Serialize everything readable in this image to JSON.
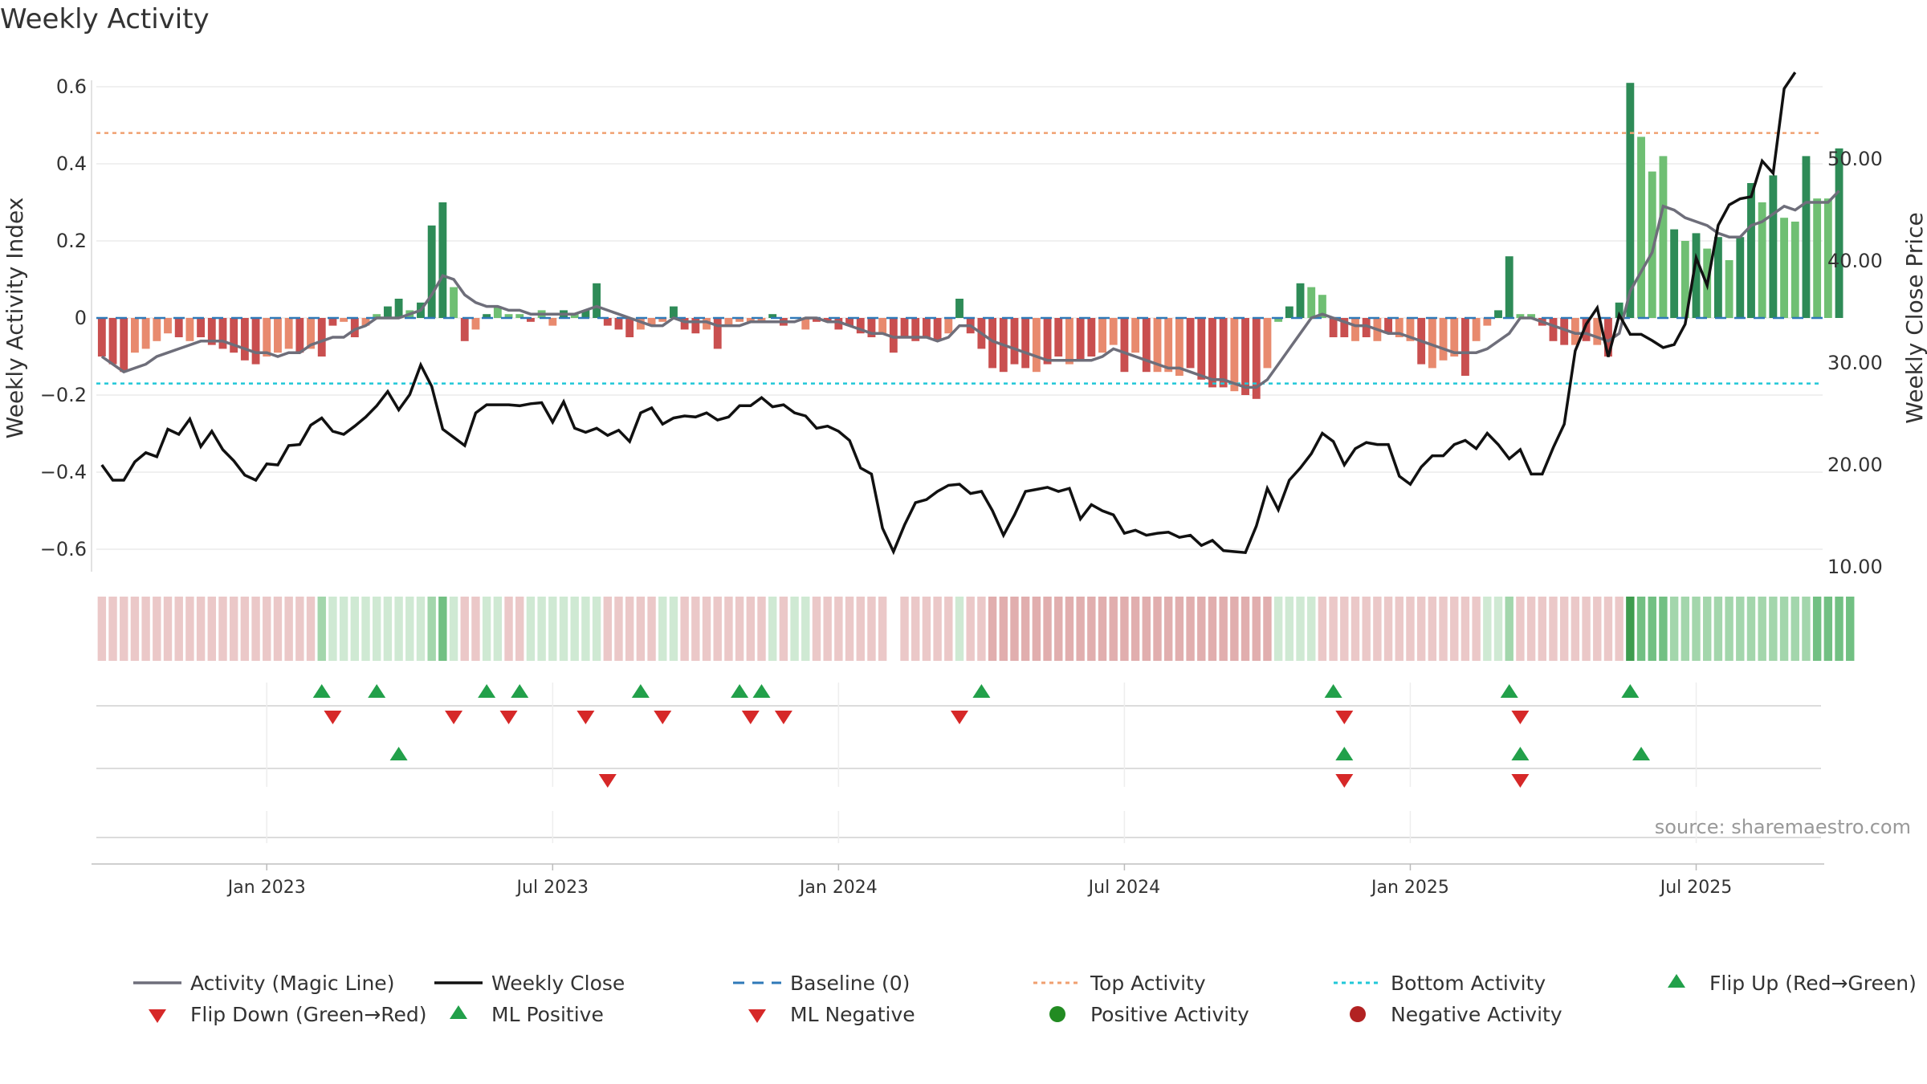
{
  "chart_data": {
    "type": "bar",
    "title": "Weekly Activity",
    "source": "source: sharemaestro.com",
    "y_left": {
      "label": "Weekly Activity Index",
      "ylim": [
        -0.66,
        0.6
      ],
      "ticks": [
        0.6,
        0.4,
        0.2,
        0,
        -0.2,
        -0.4,
        -0.6
      ],
      "tick_labels": [
        "0.6",
        "0.4",
        "0.2",
        "0",
        "−0.2",
        "−0.4",
        "−0.6"
      ]
    },
    "y_right": {
      "label": "Weekly Close Price",
      "ylim": [
        10,
        59
      ],
      "ticks": [
        50,
        40,
        30,
        20,
        10
      ],
      "tick_labels": [
        "50.00",
        "40.00",
        "30.00",
        "20.00",
        "10.00"
      ]
    },
    "x_ticks": [
      {
        "week": 15,
        "label": "Jan 2023"
      },
      {
        "week": 41,
        "label": "Jul 2023"
      },
      {
        "week": 67,
        "label": "Jan 2024"
      },
      {
        "week": 93,
        "label": "Jul 2024"
      },
      {
        "week": 119,
        "label": "Jan 2025"
      },
      {
        "week": 145,
        "label": "Jul 2025"
      }
    ],
    "weeks": 157,
    "reference_lines": {
      "baseline": 0,
      "top_activity": 0.48,
      "bottom_activity": -0.17
    },
    "activity_bars": [
      -0.1,
      -0.12,
      -0.14,
      -0.09,
      -0.08,
      -0.06,
      -0.04,
      -0.05,
      -0.06,
      -0.05,
      -0.07,
      -0.08,
      -0.09,
      -0.11,
      -0.12,
      -0.1,
      -0.09,
      -0.08,
      -0.09,
      -0.08,
      -0.1,
      -0.02,
      -0.01,
      -0.05,
      -0.02,
      0.01,
      0.03,
      0.05,
      0.02,
      0.04,
      0.24,
      0.3,
      0.08,
      -0.06,
      -0.03,
      0.01,
      0.03,
      0.01,
      0.01,
      -0.01,
      0.02,
      -0.02,
      0.02,
      0.01,
      0.02,
      0.09,
      -0.02,
      -0.03,
      -0.05,
      -0.03,
      -0.02,
      -0.01,
      0.03,
      -0.03,
      -0.04,
      -0.03,
      -0.08,
      -0.02,
      -0.01,
      -0.01,
      -0.01,
      0.01,
      -0.02,
      0,
      -0.03,
      -0.01,
      -0.01,
      -0.03,
      -0.02,
      -0.04,
      -0.05,
      -0.04,
      -0.09,
      -0.05,
      -0.06,
      -0.05,
      -0.06,
      -0.04,
      0.05,
      -0.04,
      -0.08,
      -0.13,
      -0.14,
      -0.12,
      -0.13,
      -0.14,
      -0.12,
      -0.1,
      -0.12,
      -0.11,
      -0.1,
      -0.09,
      -0.07,
      -0.14,
      -0.09,
      -0.14,
      -0.14,
      -0.14,
      -0.15,
      -0.13,
      -0.16,
      -0.18,
      -0.18,
      -0.19,
      -0.2,
      -0.21,
      -0.13,
      -0.01,
      0.03,
      0.09,
      0.08,
      0.06,
      -0.05,
      -0.05,
      -0.06,
      -0.05,
      -0.06,
      -0.04,
      -0.05,
      -0.06,
      -0.12,
      -0.13,
      -0.11,
      -0.1,
      -0.15,
      -0.06,
      -0.02,
      0.02,
      0.16,
      0.01,
      0.01,
      -0.02,
      -0.06,
      -0.07,
      -0.07,
      -0.06,
      -0.07,
      -0.1,
      0.04,
      0.61,
      0.47,
      0.38,
      0.42,
      0.23,
      0.2,
      0.22,
      0.18,
      0.21,
      0.15,
      0.21,
      0.35,
      0.3,
      0.37,
      0.26,
      0.25,
      0.42,
      0.31,
      0.31,
      0.44
    ],
    "bar_colors": [
      "#c94f4f",
      "#c94f4f",
      "#c94f4f",
      "#e88a6e",
      "#e88a6e",
      "#e88a6e",
      "#e88a6e",
      "#c94f4f",
      "#e88a6e",
      "#c94f4f",
      "#c94f4f",
      "#c94f4f",
      "#c94f4f",
      "#c94f4f",
      "#c94f4f",
      "#e88a6e",
      "#e88a6e",
      "#e88a6e",
      "#c94f4f",
      "#e88a6e",
      "#c94f4f",
      "#c94f4f",
      "#e88a6e",
      "#c94f4f",
      "#e88a6e",
      "#6fbf73",
      "#2e8b57",
      "#2e8b57",
      "#6fbf73",
      "#2e8b57",
      "#2e8b57",
      "#2e8b57",
      "#6fbf73",
      "#c94f4f",
      "#e88a6e",
      "#2e8b57",
      "#6fbf73",
      "#6fbf73",
      "#6fbf73",
      "#c94f4f",
      "#6fbf73",
      "#e88a6e",
      "#2e8b57",
      "#6fbf73",
      "#2e8b57",
      "#2e8b57",
      "#c94f4f",
      "#c94f4f",
      "#c94f4f",
      "#e88a6e",
      "#e88a6e",
      "#e88a6e",
      "#2e8b57",
      "#c94f4f",
      "#c94f4f",
      "#e88a6e",
      "#c94f4f",
      "#e88a6e",
      "#e88a6e",
      "#e88a6e",
      "#e88a6e",
      "#2e8b57",
      "#c94f4f",
      "#6fbf73",
      "#e88a6e",
      "#c94f4f",
      "#c94f4f",
      "#c94f4f",
      "#c94f4f",
      "#c94f4f",
      "#c94f4f",
      "#e88a6e",
      "#c94f4f",
      "#c94f4f",
      "#c94f4f",
      "#c94f4f",
      "#c94f4f",
      "#e88a6e",
      "#2e8b57",
      "#c94f4f",
      "#c94f4f",
      "#c94f4f",
      "#c94f4f",
      "#c94f4f",
      "#c94f4f",
      "#e88a6e",
      "#c94f4f",
      "#c94f4f",
      "#e88a6e",
      "#c94f4f",
      "#c94f4f",
      "#e88a6e",
      "#e88a6e",
      "#c94f4f",
      "#e88a6e",
      "#c94f4f",
      "#e88a6e",
      "#e88a6e",
      "#e88a6e",
      "#c94f4f",
      "#c94f4f",
      "#c94f4f",
      "#c94f4f",
      "#e88a6e",
      "#c94f4f",
      "#c94f4f",
      "#e88a6e",
      "#6fbf73",
      "#2e8b57",
      "#2e8b57",
      "#6fbf73",
      "#6fbf73",
      "#c94f4f",
      "#c94f4f",
      "#e88a6e",
      "#c94f4f",
      "#e88a6e",
      "#c94f4f",
      "#e88a6e",
      "#e88a6e",
      "#c94f4f",
      "#e88a6e",
      "#e88a6e",
      "#e88a6e",
      "#c94f4f",
      "#e88a6e",
      "#e88a6e",
      "#2e8b57",
      "#2e8b57",
      "#6fbf73",
      "#6fbf73",
      "#c94f4f",
      "#c94f4f",
      "#c94f4f",
      "#e88a6e",
      "#c94f4f",
      "#e88a6e",
      "#c94f4f",
      "#2e8b57",
      "#2e8b57",
      "#6fbf73",
      "#6fbf73",
      "#6fbf73",
      "#2e8b57",
      "#6fbf73",
      "#2e8b57",
      "#6fbf73",
      "#2e8b57",
      "#6fbf73",
      "#2e8b57",
      "#2e8b57",
      "#6fbf73",
      "#2e8b57",
      "#6fbf73",
      "#6fbf73",
      "#2e8b57",
      "#6fbf73",
      "#6fbf73",
      "#2e8b57"
    ],
    "magic_line": [
      -0.1,
      -0.12,
      -0.14,
      -0.13,
      -0.12,
      -0.1,
      -0.09,
      -0.08,
      -0.07,
      -0.06,
      -0.06,
      -0.06,
      -0.07,
      -0.08,
      -0.09,
      -0.09,
      -0.1,
      -0.09,
      -0.09,
      -0.07,
      -0.06,
      -0.05,
      -0.05,
      -0.03,
      -0.02,
      0.0,
      0.0,
      0.0,
      0.01,
      0.02,
      0.06,
      0.11,
      0.1,
      0.06,
      0.04,
      0.03,
      0.03,
      0.02,
      0.02,
      0.01,
      0.01,
      0.01,
      0.01,
      0.01,
      0.02,
      0.03,
      0.02,
      0.01,
      0.0,
      -0.01,
      -0.02,
      -0.02,
      0.0,
      -0.01,
      -0.01,
      -0.01,
      -0.02,
      -0.02,
      -0.02,
      -0.01,
      -0.01,
      -0.01,
      -0.01,
      -0.01,
      0.0,
      0.0,
      -0.01,
      -0.01,
      -0.02,
      -0.03,
      -0.04,
      -0.04,
      -0.05,
      -0.05,
      -0.05,
      -0.05,
      -0.06,
      -0.05,
      -0.02,
      -0.02,
      -0.04,
      -0.06,
      -0.07,
      -0.08,
      -0.09,
      -0.1,
      -0.11,
      -0.11,
      -0.11,
      -0.11,
      -0.11,
      -0.1,
      -0.08,
      -0.09,
      -0.1,
      -0.11,
      -0.12,
      -0.13,
      -0.13,
      -0.14,
      -0.15,
      -0.16,
      -0.16,
      -0.17,
      -0.18,
      -0.18,
      -0.16,
      -0.12,
      -0.08,
      -0.04,
      0.0,
      0.01,
      0.0,
      -0.01,
      -0.02,
      -0.02,
      -0.03,
      -0.04,
      -0.04,
      -0.05,
      -0.06,
      -0.07,
      -0.08,
      -0.09,
      -0.09,
      -0.09,
      -0.08,
      -0.06,
      -0.04,
      0.0,
      0.0,
      -0.01,
      -0.02,
      -0.03,
      -0.04,
      -0.04,
      -0.05,
      -0.06,
      -0.04,
      0.07,
      0.12,
      0.17,
      0.29,
      0.28,
      0.26,
      0.25,
      0.24,
      0.22,
      0.21,
      0.21,
      0.24,
      0.25,
      0.27,
      0.29,
      0.28,
      0.3,
      0.3,
      0.3,
      0.33
    ],
    "weekly_close": [
      20.0,
      18.5,
      18.5,
      20.3,
      21.2,
      20.8,
      23.5,
      23.0,
      24.5,
      21.8,
      23.3,
      21.5,
      20.4,
      19.0,
      18.5,
      20.1,
      20.0,
      21.9,
      22.0,
      23.9,
      24.6,
      23.3,
      23.0,
      23.8,
      24.7,
      25.8,
      27.2,
      25.4,
      26.9,
      29.8,
      27.7,
      23.5,
      22.7,
      21.9,
      25.1,
      25.9,
      25.9,
      25.9,
      25.8,
      26.0,
      26.1,
      24.2,
      26.2,
      23.6,
      23.2,
      23.6,
      22.9,
      23.4,
      22.3,
      25.1,
      25.6,
      24.0,
      24.6,
      24.8,
      24.7,
      25.1,
      24.4,
      24.7,
      25.8,
      25.8,
      26.6,
      25.7,
      25.9,
      25.1,
      24.8,
      23.6,
      23.8,
      23.3,
      22.4,
      19.7,
      19.1,
      13.8,
      11.5,
      14.1,
      16.3,
      16.6,
      17.4,
      18.0,
      18.1,
      17.2,
      17.4,
      15.5,
      13.1,
      15.1,
      17.4,
      17.6,
      17.8,
      17.4,
      17.7,
      14.7,
      16.1,
      15.5,
      15.1,
      13.3,
      13.6,
      13.1,
      13.3,
      13.4,
      12.9,
      13.1,
      12.1,
      12.6,
      11.6,
      11.5,
      11.4,
      14.0,
      17.7,
      15.6,
      18.5,
      19.7,
      21.1,
      23.1,
      22.3,
      20.0,
      21.6,
      22.2,
      22.0,
      22.0,
      18.9,
      18.1,
      19.8,
      20.9,
      20.9,
      22.0,
      22.4,
      21.6,
      23.1,
      22.0,
      20.6,
      21.5,
      19.1,
      19.1,
      21.7,
      24.0,
      31.2,
      33.8,
      35.4,
      30.6,
      34.7,
      32.8,
      32.8,
      32.2,
      31.5,
      31.8,
      33.8,
      40.3,
      37.6,
      43.5,
      45.5,
      46.1,
      46.3,
      49.8,
      48.6,
      56.9,
      58.5
    ],
    "color_strip": [
      "p",
      "p",
      "p",
      "p",
      "p",
      "p",
      "p",
      "p",
      "p",
      "p",
      "p",
      "p",
      "p",
      "p",
      "p",
      "p",
      "p",
      "p",
      "p",
      "p",
      "G",
      "g",
      "g",
      "g",
      "g",
      "g",
      "g",
      "g",
      "g",
      "g",
      "G",
      "H",
      "g",
      "p",
      "p",
      "g",
      "g",
      "p",
      "p",
      "g",
      "g",
      "g",
      "g",
      "g",
      "g",
      "g",
      "p",
      "p",
      "p",
      "p",
      "p",
      "g",
      "g",
      "p",
      "p",
      "p",
      "p",
      "p",
      "p",
      "p",
      "p",
      "g",
      "p",
      "g",
      "g",
      "p",
      "p",
      "p",
      "p",
      "p",
      "p",
      "p",
      "p",
      "p",
      "p",
      "p",
      "p",
      "p",
      "g",
      "p",
      "p",
      "P",
      "P",
      "P",
      "P",
      "P",
      "P",
      "P",
      "P",
      "P",
      "P",
      "P",
      "P",
      "P",
      "P",
      "P",
      "P",
      "P",
      "P",
      "P",
      "P",
      "P",
      "P",
      "P",
      "P",
      "P",
      "P",
      "g",
      "g",
      "g",
      "g",
      "p",
      "p",
      "p",
      "p",
      "p",
      "p",
      "p",
      "p",
      "p",
      "p",
      "p",
      "p",
      "p",
      "p",
      "p",
      "g",
      "g",
      "G",
      "p",
      "p",
      "p",
      "p",
      "p",
      "p",
      "p",
      "p",
      "p",
      "p",
      "D",
      "H",
      "H",
      "H",
      "G",
      "G",
      "G",
      "G",
      "G",
      "G",
      "G",
      "G",
      "G",
      "G",
      "G",
      "G",
      "G",
      "H",
      "H",
      "H",
      "H"
    ],
    "flip_up": [
      20,
      25,
      35,
      38,
      49,
      58,
      60,
      80,
      112,
      128,
      139
    ],
    "flip_down": [
      21,
      32,
      37,
      44,
      51,
      59,
      62,
      78,
      113,
      129
    ],
    "ml_positive": [
      27,
      113,
      129,
      140
    ],
    "ml_negative": [
      46,
      113,
      129
    ],
    "colors": {
      "bar_green_dark": "#2e8b57",
      "bar_green_light": "#6fbf73",
      "bar_red_dark": "#c94f4f",
      "bar_red_light": "#e88a6e",
      "magic_line": "#6e6e7a",
      "weekly_close": "#111111",
      "baseline": "#2f79b8",
      "top_activity": "#f0a070",
      "bottom_activity": "#22c8d8",
      "marker_up": "#22a04a",
      "marker_down": "#d62828",
      "positive_activity": "#228b22",
      "negative_activity": "#b22222"
    },
    "legend": [
      {
        "label": "Activity (Magic Line)",
        "symbol": "line-gray"
      },
      {
        "label": "Weekly Close",
        "symbol": "line-black"
      },
      {
        "label": "Baseline (0)",
        "symbol": "dash-blue"
      },
      {
        "label": "Top Activity",
        "symbol": "dot-orange"
      },
      {
        "label": "Bottom Activity",
        "symbol": "dot-cyan"
      },
      {
        "label": "Flip Up (Red→Green)",
        "symbol": "tri-up"
      },
      {
        "label": "Flip Down (Green→Red)",
        "symbol": "tri-down"
      },
      {
        "label": "ML Positive",
        "symbol": "tri-up"
      },
      {
        "label": "ML Negative",
        "symbol": "tri-down"
      },
      {
        "label": "Positive Activity",
        "symbol": "circle-green"
      },
      {
        "label": "Negative Activity",
        "symbol": "circle-red"
      }
    ]
  }
}
